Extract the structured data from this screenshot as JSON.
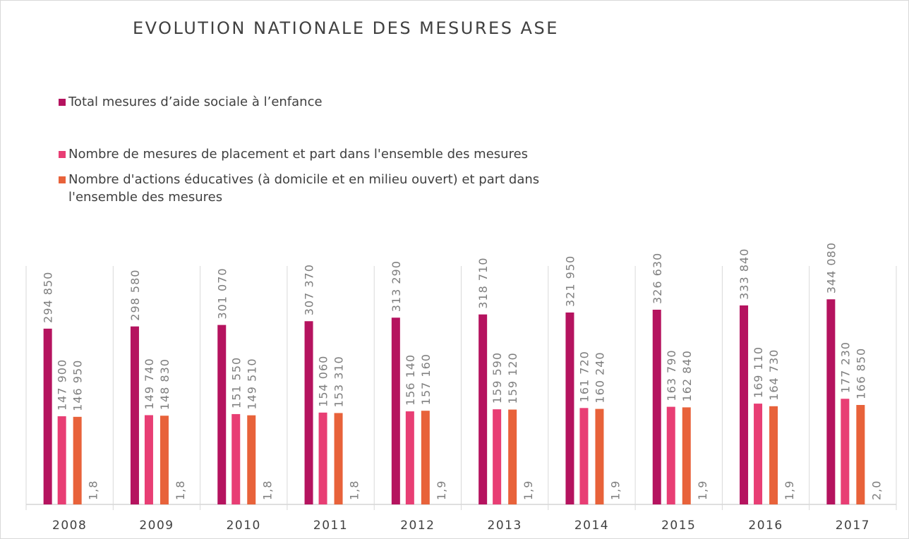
{
  "chart_data": {
    "type": "bar",
    "title": "EVOLUTION NATIONALE DES MESURES ASE",
    "categories": [
      "2008",
      "2009",
      "2010",
      "2011",
      "2012",
      "2013",
      "2014",
      "2015",
      "2016",
      "2017"
    ],
    "series": [
      {
        "name": "Total mesures d’aide sociale à l’enfance",
        "color": "#b5135f",
        "values": [
          294850,
          298580,
          301070,
          307370,
          313290,
          318710,
          321950,
          326630,
          333840,
          344080
        ],
        "value_labels": [
          "294 850",
          "298 580",
          "301 070",
          "307 370",
          "313 290",
          "318 710",
          "321 950",
          "326 630",
          "333 840",
          "344 080"
        ]
      },
      {
        "name": "Nombre de mesures de placement et part dans l'ensemble des mesures",
        "color": "#e83e74",
        "values": [
          147900,
          149740,
          151550,
          154060,
          156140,
          159590,
          161720,
          163790,
          169110,
          177230
        ],
        "value_labels": [
          "147 900",
          "149 740",
          "151 550",
          "154 060",
          "156 140",
          "159 590",
          "161 720",
          "163 790",
          "169 110",
          "177 230"
        ]
      },
      {
        "name": "Nombre d'actions éducatives (à domicile et en milieu ouvert) et part dans l'ensemble des mesures",
        "color": "#e8623a",
        "values": [
          146950,
          148830,
          149510,
          153310,
          157160,
          159120,
          160240,
          162840,
          164730,
          166850
        ],
        "value_labels": [
          "146 950",
          "148 830",
          "149 510",
          "153 310",
          "157 160",
          "159 120",
          "160 240",
          "162 840",
          "164 730",
          "166 850"
        ]
      },
      {
        "color": "#7f7f7f",
        "values": [
          1.8,
          1.8,
          1.8,
          1.8,
          1.9,
          1.9,
          1.9,
          1.9,
          1.9,
          2.0
        ],
        "value_labels": [
          "1,8",
          "1,8",
          "1,8",
          "1,8",
          "1,9",
          "1,9",
          "1,9",
          "1,9",
          "1,9",
          "2,0"
        ]
      }
    ],
    "ylim": [
      0,
      400000
    ],
    "legend": "top-left"
  }
}
